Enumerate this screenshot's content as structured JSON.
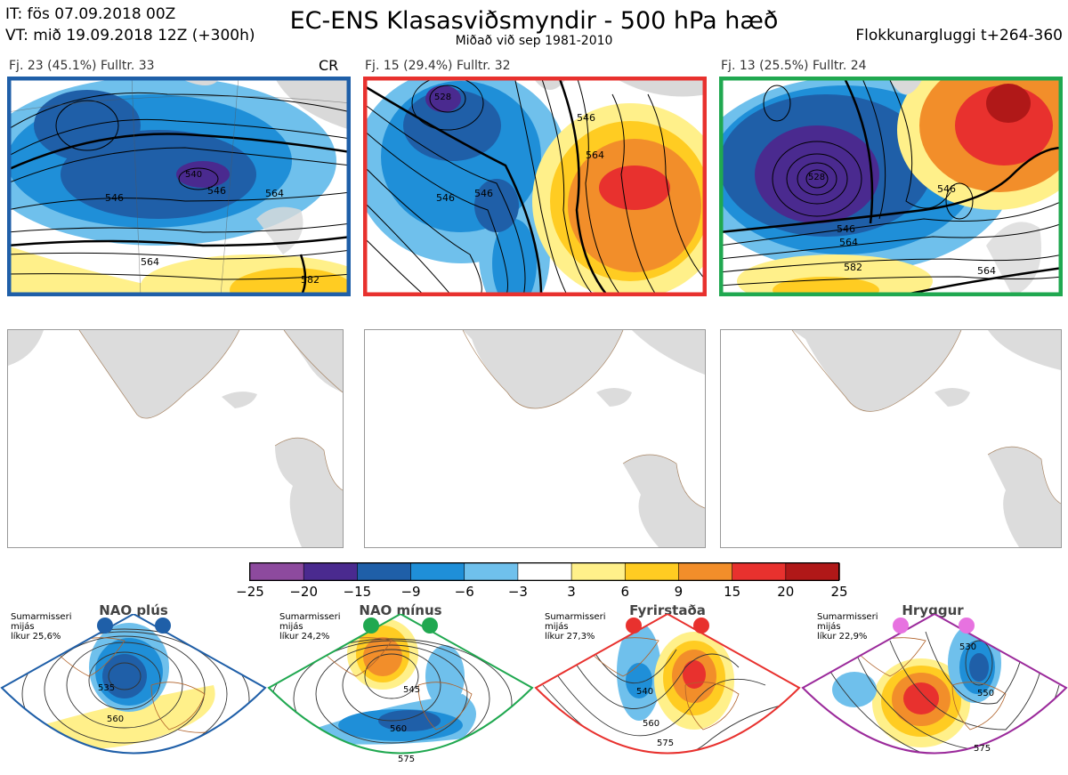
{
  "header": {
    "it_line": "IT: fös 07.09.2018 00Z",
    "vt_line": "VT: mið 19.09.2018 12Z  (+300h)",
    "title": "EC-ENS Klasasviðsmyndir - 500 hPa hæð",
    "subtitle": "Miðað við sep 1981-2010",
    "window": "Flokkunargluggi t+264-360"
  },
  "clusters": [
    {
      "label": "Fj. 23 (45.1%)   Fulltr. 33",
      "extra": "CR",
      "frame_color": "#1f5fa8",
      "contours": [
        "546",
        "546",
        "564",
        "582",
        "564",
        "540"
      ]
    },
    {
      "label": "Fj. 15 (29.4%)   Fulltr. 32",
      "extra": "",
      "frame_color": "#e8312e",
      "contours": [
        "546",
        "564",
        "546",
        "528",
        "546"
      ]
    },
    {
      "label": "Fj. 13 (25.5%)   Fulltr. 24",
      "extra": "",
      "frame_color": "#20a850",
      "contours": [
        "546",
        "564",
        "582",
        "564",
        "546",
        "528"
      ]
    }
  ],
  "colorbar": {
    "colors": [
      "#8d4a9e",
      "#4a2a8f",
      "#1f5fa8",
      "#1f8fd8",
      "#6fc0ec",
      "#ffffff",
      "#fff08a",
      "#ffcc22",
      "#f28e2a",
      "#e8312e",
      "#b01818"
    ],
    "ticks": [
      "−25",
      "−20",
      "−15",
      "−9",
      "−6",
      "−3",
      "3",
      "6",
      "9",
      "15",
      "20",
      "25"
    ]
  },
  "regimes": [
    {
      "name": "NAO plús",
      "info": [
        "Sumarmisseri",
        "mijás",
        "líkur 25,6%"
      ],
      "color": "#1f5fa8",
      "contours": [
        "535",
        "560"
      ]
    },
    {
      "name": "NAO mínus",
      "info": [
        "Sumarmisseri",
        "mijás",
        "líkur 24,2%"
      ],
      "color": "#20a850",
      "contours": [
        "545",
        "560",
        "575"
      ]
    },
    {
      "name": "Fyrirstaða",
      "info": [
        "Sumarmisseri",
        "mijás",
        "líkur 27,3%"
      ],
      "color": "#e8312e",
      "contours": [
        "540",
        "560",
        "575"
      ]
    },
    {
      "name": "Hryggur",
      "info": [
        "Sumarmisseri",
        "mijás",
        "líkur 22,9%"
      ],
      "color": "#e772e0",
      "contours": [
        "530",
        "550",
        "575"
      ]
    }
  ]
}
